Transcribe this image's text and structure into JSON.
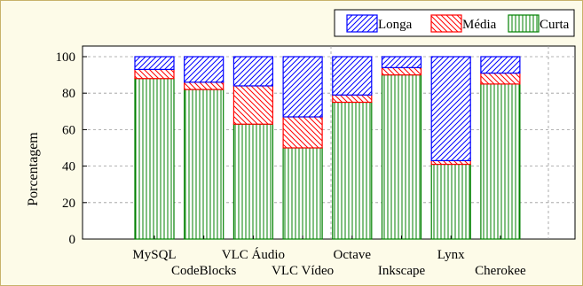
{
  "chart_data": {
    "type": "bar",
    "stacked": true,
    "ylabel": "Porcentagem",
    "ylim": [
      0,
      100
    ],
    "yticks": [
      0,
      20,
      40,
      60,
      80,
      100
    ],
    "grid": true,
    "legend_position": "top-right",
    "categories": [
      "MySQL",
      "CodeBlocks",
      "VLC Áudio",
      "VLC Vídeo",
      "Octave",
      "Inkscape",
      "Lynx",
      "Cherokee"
    ],
    "series": [
      {
        "name": "Curta",
        "color": "#008000",
        "pattern": "vertical-lines",
        "values": [
          88,
          82,
          63,
          50,
          75,
          90,
          41,
          85
        ]
      },
      {
        "name": "Média",
        "color": "#ff0000",
        "pattern": "diagonal-lines",
        "values": [
          5,
          4,
          21,
          17,
          4,
          4,
          2,
          6
        ]
      },
      {
        "name": "Longa",
        "color": "#0000ff",
        "pattern": "diagonal-lines",
        "values": [
          7,
          14,
          16,
          33,
          21,
          6,
          57,
          9
        ]
      }
    ],
    "legend_order": [
      "Longa",
      "Média",
      "Curta"
    ]
  }
}
